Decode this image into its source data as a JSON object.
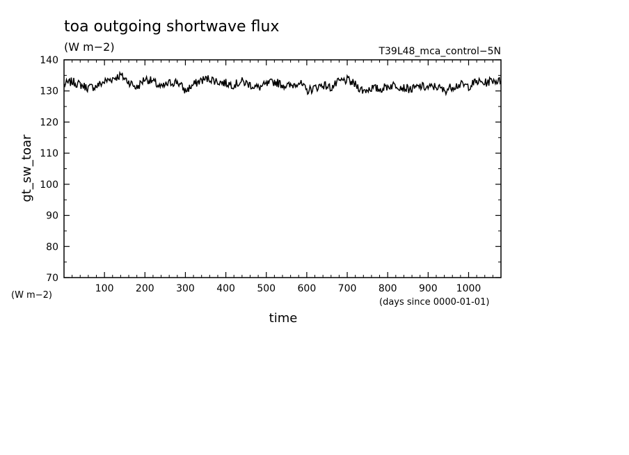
{
  "chart_data": {
    "type": "line",
    "title": "toa outgoing shortwave flux",
    "subtitle": "(W m−2)",
    "experiment": "T39L48_mca_control−5N",
    "ylabel": "gt_sw_toar",
    "yunits": "(W m−2)",
    "xlabel": "time",
    "xunits": "(days since 0000-01-01)",
    "xlim": [
      0,
      1080
    ],
    "ylim": [
      70,
      140
    ],
    "xticks": [
      100,
      200,
      300,
      400,
      500,
      600,
      700,
      800,
      900,
      1000
    ],
    "yticks": [
      70,
      80,
      90,
      100,
      110,
      120,
      130,
      140
    ],
    "xtick_labels": [
      "100",
      "200",
      "300",
      "400",
      "500",
      "600",
      "700",
      "800",
      "900",
      "1000"
    ],
    "ytick_labels": [
      "70",
      "80",
      "90",
      "100",
      "110",
      "120",
      "130",
      "140"
    ],
    "grid": false,
    "series": [
      {
        "color": "#000000",
        "x": [
          0,
          20,
          40,
          60,
          80,
          100,
          120,
          140,
          160,
          180,
          200,
          220,
          240,
          260,
          280,
          300,
          320,
          340,
          360,
          380,
          400,
          420,
          440,
          460,
          480,
          500,
          520,
          540,
          560,
          580,
          600,
          620,
          640,
          660,
          680,
          700,
          720,
          740,
          760,
          780,
          800,
          820,
          840,
          860,
          880,
          900,
          920,
          940,
          960,
          980,
          1000,
          1020,
          1040,
          1060,
          1080
        ],
        "y": [
          132,
          133,
          132,
          131,
          131.5,
          133,
          134,
          135,
          133,
          131,
          134,
          133,
          131,
          132.5,
          133,
          130,
          132,
          133.5,
          134,
          133,
          132.5,
          132,
          133,
          132,
          131,
          132,
          133,
          132,
          131.5,
          133,
          130,
          131,
          132,
          131,
          133,
          133.5,
          132,
          130,
          131,
          130.5,
          131.5,
          132,
          131,
          130.5,
          131.5,
          131,
          131.5,
          130,
          131.5,
          132,
          131.5,
          133,
          132.5,
          133.5,
          133
        ]
      }
    ]
  }
}
